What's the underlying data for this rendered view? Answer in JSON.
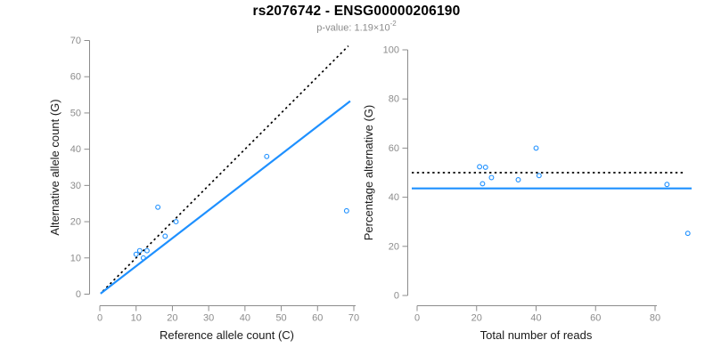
{
  "figure": {
    "title": "rs2076742 - ENSG00000206190",
    "subtitle": {
      "prefix": "p-value: 1.19×10",
      "exponent": "-2"
    },
    "colors": {
      "accent_blue": "#1E90FF",
      "dashed_black": "#000000",
      "axis_gray": "#8C8C8C",
      "axis_title_color": "#1a1a1a",
      "background": "#FFFFFF"
    }
  },
  "chart_data": [
    {
      "type": "scatter",
      "panel": "left",
      "xlabel": "Reference allele count (C)",
      "ylabel": "Alternative allele count (G)",
      "xlim": [
        0,
        70
      ],
      "ylim": [
        0,
        70
      ],
      "xticks": [
        0,
        10,
        20,
        30,
        40,
        50,
        60,
        70
      ],
      "yticks": [
        0,
        10,
        20,
        30,
        40,
        50,
        60,
        70
      ],
      "grid": false,
      "legend": "none",
      "point_color": "#1E90FF",
      "points": [
        [
          10,
          11
        ],
        [
          11,
          12
        ],
        [
          12,
          10
        ],
        [
          13,
          12
        ],
        [
          16,
          24
        ],
        [
          18,
          16
        ],
        [
          21,
          20
        ],
        [
          46,
          38
        ],
        [
          68,
          23
        ]
      ],
      "lines": [
        {
          "name": "identity-line",
          "style": "dashed",
          "color": "#000000",
          "slope": 1,
          "intercept": 0
        },
        {
          "name": "fit-line",
          "style": "solid",
          "color": "#1E90FF",
          "slope": 0.772,
          "intercept": 0
        }
      ]
    },
    {
      "type": "scatter",
      "panel": "right",
      "xlabel": "Total number of reads",
      "ylabel": "Percentage alternative (G)",
      "xlim": [
        0,
        93
      ],
      "ylim": [
        0,
        100
      ],
      "xticks": [
        0,
        20,
        40,
        60,
        80
      ],
      "yticks": [
        0,
        20,
        40,
        60,
        80,
        100
      ],
      "grid": false,
      "legend": "none",
      "point_color": "#1E90FF",
      "points": [
        [
          21,
          52.4
        ],
        [
          23,
          52.2
        ],
        [
          22,
          45.5
        ],
        [
          25,
          48.0
        ],
        [
          34,
          47.1
        ],
        [
          40,
          60.0
        ],
        [
          41,
          48.8
        ],
        [
          84,
          45.2
        ],
        [
          91,
          25.3
        ]
      ],
      "lines": [
        {
          "name": "expected-50pct-line",
          "style": "dashed",
          "color": "#000000",
          "slope": 0,
          "intercept": 50
        },
        {
          "name": "mean-percentage-line",
          "style": "solid",
          "color": "#1E90FF",
          "slope": 0,
          "intercept": 43.6
        }
      ]
    }
  ]
}
